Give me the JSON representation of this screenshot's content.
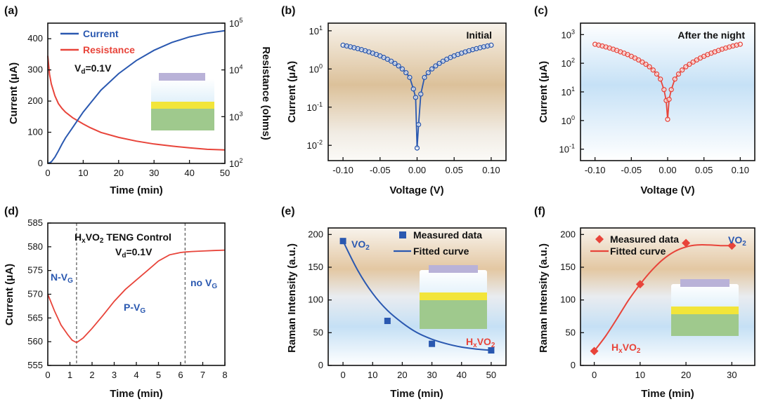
{
  "colors": {
    "blue": "#2a58b0",
    "red": "#e8443a",
    "axis": "#111111"
  },
  "chart_data": [
    {
      "panel": "(a)",
      "type": "line",
      "xlabel": "Time (min)",
      "ylabel": "Current (μA)",
      "y2label": "Resistance (ohms)",
      "xlim": [
        0,
        50
      ],
      "ylim": [
        0,
        450
      ],
      "y2lim_log": [
        2,
        5
      ],
      "xticks": [
        0,
        10,
        20,
        30,
        40,
        50
      ],
      "yticks": [
        0,
        100,
        200,
        300,
        400
      ],
      "y2ticks_exp": [
        2,
        3,
        4,
        5
      ],
      "legend": {
        "current": "Current",
        "resistance": "Resistance"
      },
      "note_base": "V",
      "note_sub": "d",
      "note_tail": "=0.1V",
      "series": [
        {
          "name": "Current",
          "axis": "left",
          "color": "#2a58b0",
          "x": [
            0,
            1,
            2,
            3,
            4,
            5,
            7,
            10,
            15,
            20,
            25,
            30,
            35,
            40,
            45,
            50
          ],
          "y": [
            0,
            5,
            20,
            40,
            62,
            82,
            115,
            165,
            235,
            288,
            330,
            363,
            388,
            406,
            418,
            426
          ]
        },
        {
          "name": "Resistance",
          "axis": "right_log",
          "color": "#e8443a",
          "x": [
            0,
            0.5,
            1,
            2,
            3,
            4,
            5,
            7,
            10,
            12,
            15,
            20,
            25,
            30,
            35,
            40,
            45,
            50
          ],
          "y": [
            20000,
            8000,
            5000,
            2800,
            1900,
            1500,
            1250,
            950,
            700,
            580,
            460,
            360,
            300,
            260,
            235,
            215,
            200,
            195
          ]
        }
      ]
    },
    {
      "panel": "(b)",
      "type": "scatter",
      "title": "Initial",
      "xlabel": "Voltage (V)",
      "ylabel": "Current (μA)",
      "xlim": [
        -0.12,
        0.12
      ],
      "ylim_log": [
        -2.4,
        1.2
      ],
      "xticks": [
        "-0.10",
        "-0.05",
        "0.00",
        "0.05",
        "0.10"
      ],
      "yticks_exp": [
        -2,
        -1,
        0,
        1
      ],
      "series": [
        {
          "name": "Initial",
          "color": "#2a58b0",
          "x": [
            -0.1,
            -0.095,
            -0.09,
            -0.085,
            -0.08,
            -0.075,
            -0.07,
            -0.065,
            -0.06,
            -0.055,
            -0.05,
            -0.045,
            -0.04,
            -0.035,
            -0.03,
            -0.025,
            -0.02,
            -0.015,
            -0.01,
            -0.005,
            -0.002,
            0.0,
            0.002,
            0.005,
            0.01,
            0.015,
            0.02,
            0.025,
            0.03,
            0.035,
            0.04,
            0.045,
            0.05,
            0.055,
            0.06,
            0.065,
            0.07,
            0.075,
            0.08,
            0.085,
            0.09,
            0.095,
            0.1
          ],
          "y": [
            4.2,
            4.0,
            3.8,
            3.6,
            3.4,
            3.2,
            3.0,
            2.8,
            2.6,
            2.4,
            2.2,
            2.0,
            1.8,
            1.6,
            1.4,
            1.2,
            1.0,
            0.8,
            0.6,
            0.3,
            0.18,
            0.0085,
            0.035,
            0.22,
            0.6,
            0.8,
            1.0,
            1.2,
            1.4,
            1.6,
            1.8,
            2.0,
            2.2,
            2.4,
            2.6,
            2.8,
            3.0,
            3.2,
            3.4,
            3.6,
            3.8,
            4.0,
            4.2
          ]
        }
      ]
    },
    {
      "panel": "(c)",
      "type": "scatter",
      "title": "After the night",
      "xlabel": "Voltage (V)",
      "ylabel": "Current (μA)",
      "xlim": [
        -0.12,
        0.12
      ],
      "ylim_log": [
        -1.4,
        3.4
      ],
      "xticks": [
        "-0.10",
        "-0.05",
        "0.00",
        "0.05",
        "0.10"
      ],
      "yticks_exp": [
        -1,
        0,
        1,
        2,
        3
      ],
      "series": [
        {
          "name": "After the night",
          "color": "#e8443a",
          "x": [
            -0.1,
            -0.095,
            -0.09,
            -0.085,
            -0.08,
            -0.075,
            -0.07,
            -0.065,
            -0.06,
            -0.055,
            -0.05,
            -0.045,
            -0.04,
            -0.035,
            -0.03,
            -0.025,
            -0.02,
            -0.015,
            -0.01,
            -0.005,
            -0.002,
            0.0,
            0.002,
            0.005,
            0.01,
            0.015,
            0.02,
            0.025,
            0.03,
            0.035,
            0.04,
            0.045,
            0.05,
            0.055,
            0.06,
            0.065,
            0.07,
            0.075,
            0.08,
            0.085,
            0.09,
            0.095,
            0.1
          ],
          "y": [
            460,
            430,
            400,
            370,
            340,
            310,
            280,
            250,
            225,
            200,
            175,
            152,
            130,
            110,
            92,
            75,
            58,
            42,
            28,
            12,
            5,
            1.1,
            5.5,
            12,
            28,
            42,
            58,
            75,
            92,
            110,
            130,
            152,
            175,
            200,
            225,
            250,
            280,
            310,
            340,
            370,
            400,
            430,
            460
          ]
        }
      ]
    },
    {
      "panel": "(d)",
      "type": "line",
      "xlabel": "Time (min)",
      "ylabel": "Current (μA)",
      "xlim": [
        0,
        8
      ],
      "ylim": [
        555,
        585
      ],
      "xticks": [
        0,
        1,
        2,
        3,
        4,
        5,
        6,
        7,
        8
      ],
      "yticks": [
        555,
        560,
        565,
        570,
        575,
        580,
        585
      ],
      "vlines": [
        1.3,
        6.2
      ],
      "header_pre": "H",
      "header_sub1": "x",
      "header_mid": "VO",
      "header_sub2": "2",
      "header_post": " TENG Control",
      "vd_base": "V",
      "vd_sub": "d",
      "vd_tail": "=0.1V",
      "region_n": "N-V",
      "region_n_sub": "G",
      "region_p": "P-V",
      "region_p_sub": "G",
      "region_no": "no V",
      "region_no_sub": "G",
      "series": [
        {
          "name": "Current",
          "color": "#e8443a",
          "x": [
            0,
            0.3,
            0.6,
            0.9,
            1.1,
            1.3,
            1.6,
            2.0,
            2.5,
            3.0,
            3.5,
            4.0,
            4.5,
            5.0,
            5.5,
            6.0,
            6.2,
            6.5,
            7.0,
            7.5,
            8.0
          ],
          "y": [
            570,
            566.5,
            563.5,
            561.5,
            560.3,
            559.8,
            560.8,
            562.8,
            565.6,
            568.5,
            571.0,
            573.0,
            575.0,
            577.0,
            578.3,
            578.8,
            578.9,
            579.0,
            579.1,
            579.2,
            579.3
          ]
        }
      ]
    },
    {
      "panel": "(e)",
      "type": "scatter",
      "xlabel": "Time (min)",
      "ylabel": "Raman Intensity (a.u.)",
      "xlim": [
        -5,
        55
      ],
      "ylim": [
        0,
        210
      ],
      "xticks": [
        0,
        10,
        20,
        30,
        40,
        50
      ],
      "yticks": [
        0,
        50,
        100,
        150,
        200
      ],
      "legend": {
        "measured": "Measured data",
        "fitted": "Fitted curve"
      },
      "label_top_base": "VO",
      "label_top_sub": "2",
      "label_bot_pre": "H",
      "label_bot_sub1": "x",
      "label_bot_mid": "VO",
      "label_bot_sub2": "2",
      "measured": {
        "x": [
          0,
          15,
          30,
          50
        ],
        "y": [
          190,
          68,
          33,
          23
        ]
      },
      "fitted": {
        "x": [
          0,
          5,
          10,
          15,
          20,
          25,
          30,
          35,
          40,
          45,
          50
        ],
        "y": [
          190,
          145,
          110,
          84,
          65,
          50,
          40,
          33,
          28,
          25,
          23
        ]
      }
    },
    {
      "panel": "(f)",
      "type": "scatter",
      "xlabel": "Time (min)",
      "ylabel": "Raman Intensity (a.u.)",
      "xlim": [
        -3,
        35
      ],
      "ylim": [
        0,
        210
      ],
      "xticks": [
        0,
        10,
        20,
        30
      ],
      "yticks": [
        0,
        50,
        100,
        150,
        200
      ],
      "legend": {
        "measured": "Measured data",
        "fitted": "Fitted curve"
      },
      "label_top_base": "VO",
      "label_top_sub": "2",
      "label_bot_pre": "H",
      "label_bot_sub1": "x",
      "label_bot_mid": "VO",
      "label_bot_sub2": "2",
      "measured": {
        "x": [
          0,
          10,
          20,
          30
        ],
        "y": [
          22,
          124,
          187,
          183
        ]
      },
      "fitted": {
        "x": [
          0,
          2.5,
          5,
          7.5,
          10,
          12.5,
          15,
          17.5,
          20,
          22.5,
          25,
          27.5,
          30
        ],
        "y": [
          22,
          45,
          72,
          100,
          124,
          145,
          162,
          174,
          181,
          184,
          184,
          183,
          183
        ]
      }
    }
  ]
}
